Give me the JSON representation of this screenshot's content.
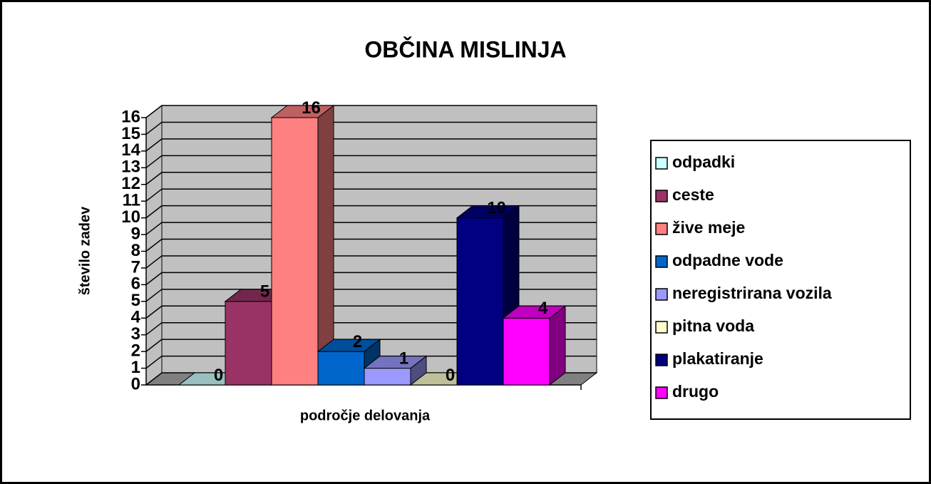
{
  "chart_data": {
    "type": "bar3d",
    "title": "OBČINA MISLINJA",
    "x_label": "področje delovanja",
    "y_label": "število zadev",
    "ylim": [
      0,
      16
    ],
    "yticks": [
      0,
      1,
      2,
      3,
      4,
      5,
      6,
      7,
      8,
      9,
      10,
      11,
      12,
      13,
      14,
      15,
      16
    ],
    "grid": true,
    "legend": "right",
    "series": [
      {
        "name": "odpadki",
        "color": "#ccffff",
        "values": [
          0
        ]
      },
      {
        "name": "ceste",
        "color": "#993366",
        "values": [
          5
        ]
      },
      {
        "name": "žive meje",
        "color": "#ff8080",
        "values": [
          16
        ]
      },
      {
        "name": "odpadne vode",
        "color": "#0066cc",
        "values": [
          2
        ]
      },
      {
        "name": "neregistrirana vozila",
        "color": "#9999ff",
        "values": [
          1
        ]
      },
      {
        "name": "pitna voda",
        "color": "#ffffcc",
        "values": [
          0
        ]
      },
      {
        "name": "plakatiranje",
        "color": "#000080",
        "values": [
          10
        ]
      },
      {
        "name": "drugo",
        "color": "#ff00ff",
        "values": [
          4
        ]
      }
    ]
  }
}
